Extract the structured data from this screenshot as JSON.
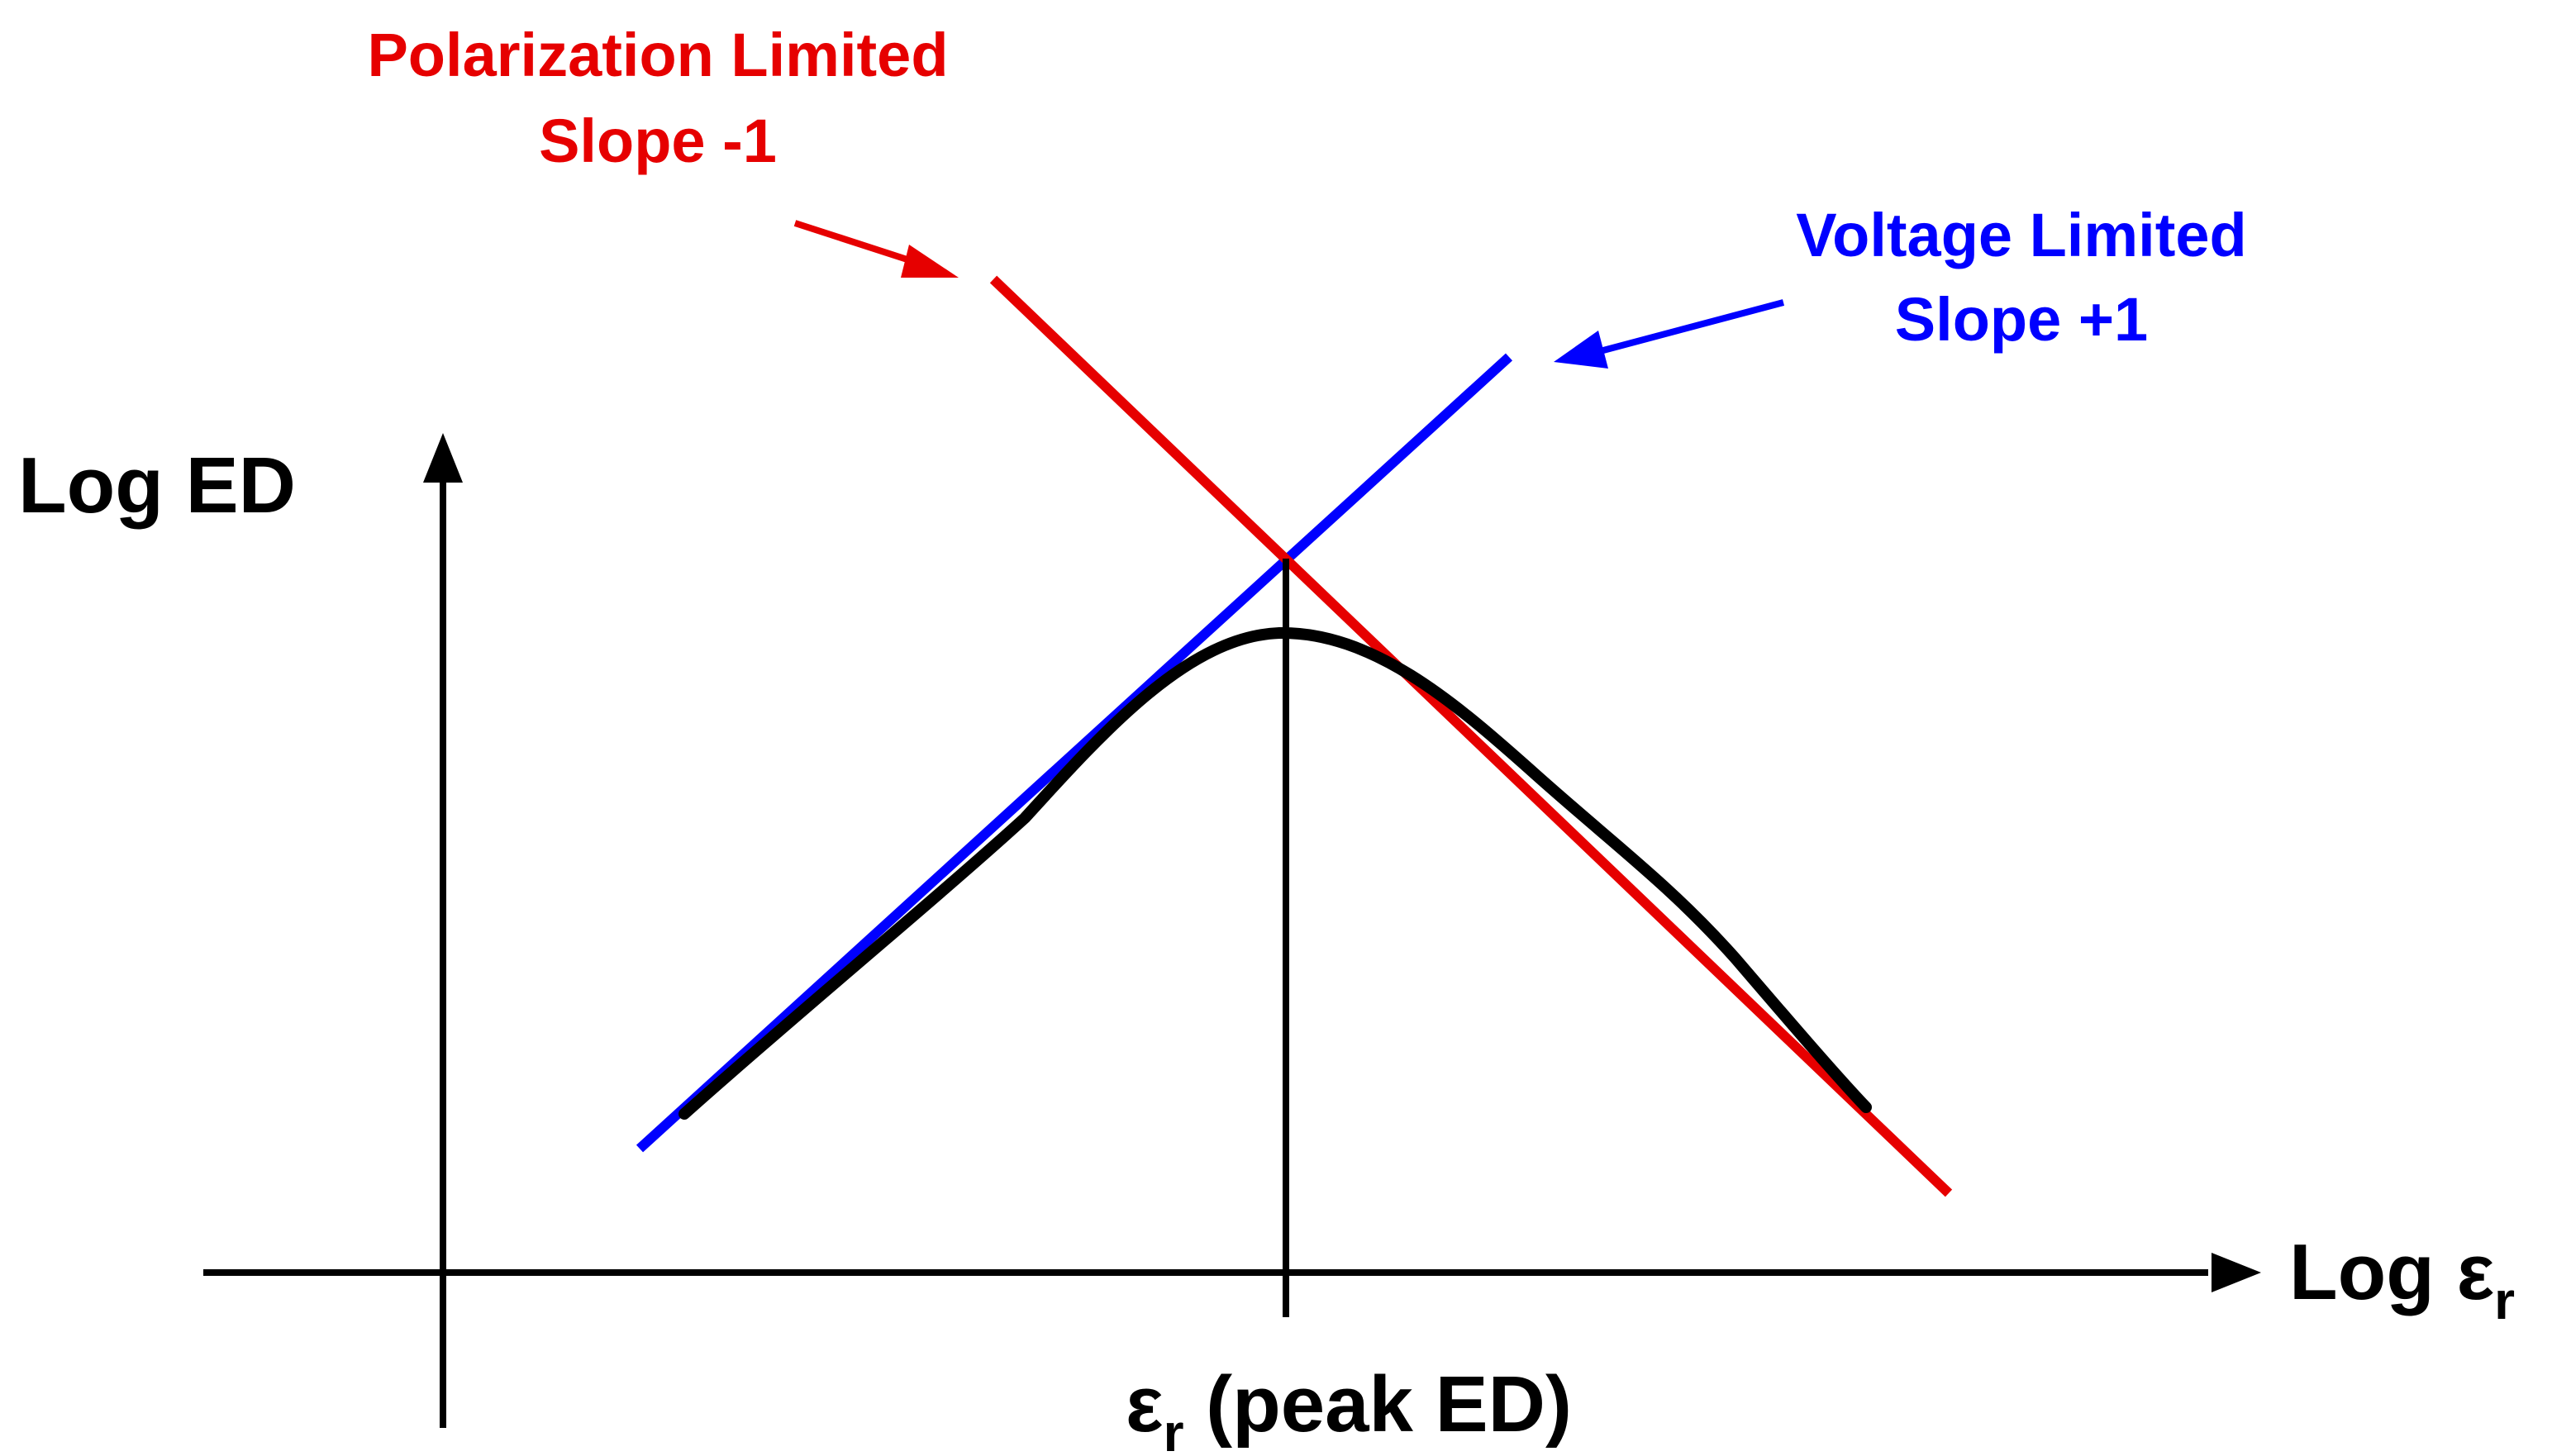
{
  "diagram": {
    "y_axis_label": "Log ED",
    "x_axis_label": {
      "main": "Log ε",
      "subscript": "r"
    },
    "peak_label": {
      "epsilon": "ε",
      "subscript": "r",
      "rest": " (peak ED)"
    },
    "polarization": {
      "line1": "Polarization Limited",
      "line2": "Slope -1"
    },
    "voltage": {
      "line1": "Voltage Limited",
      "line2": "Slope +1"
    },
    "colors": {
      "polarization": "#e60000",
      "voltage": "#0000ff",
      "curve": "#000000",
      "axes": "#000000"
    }
  }
}
